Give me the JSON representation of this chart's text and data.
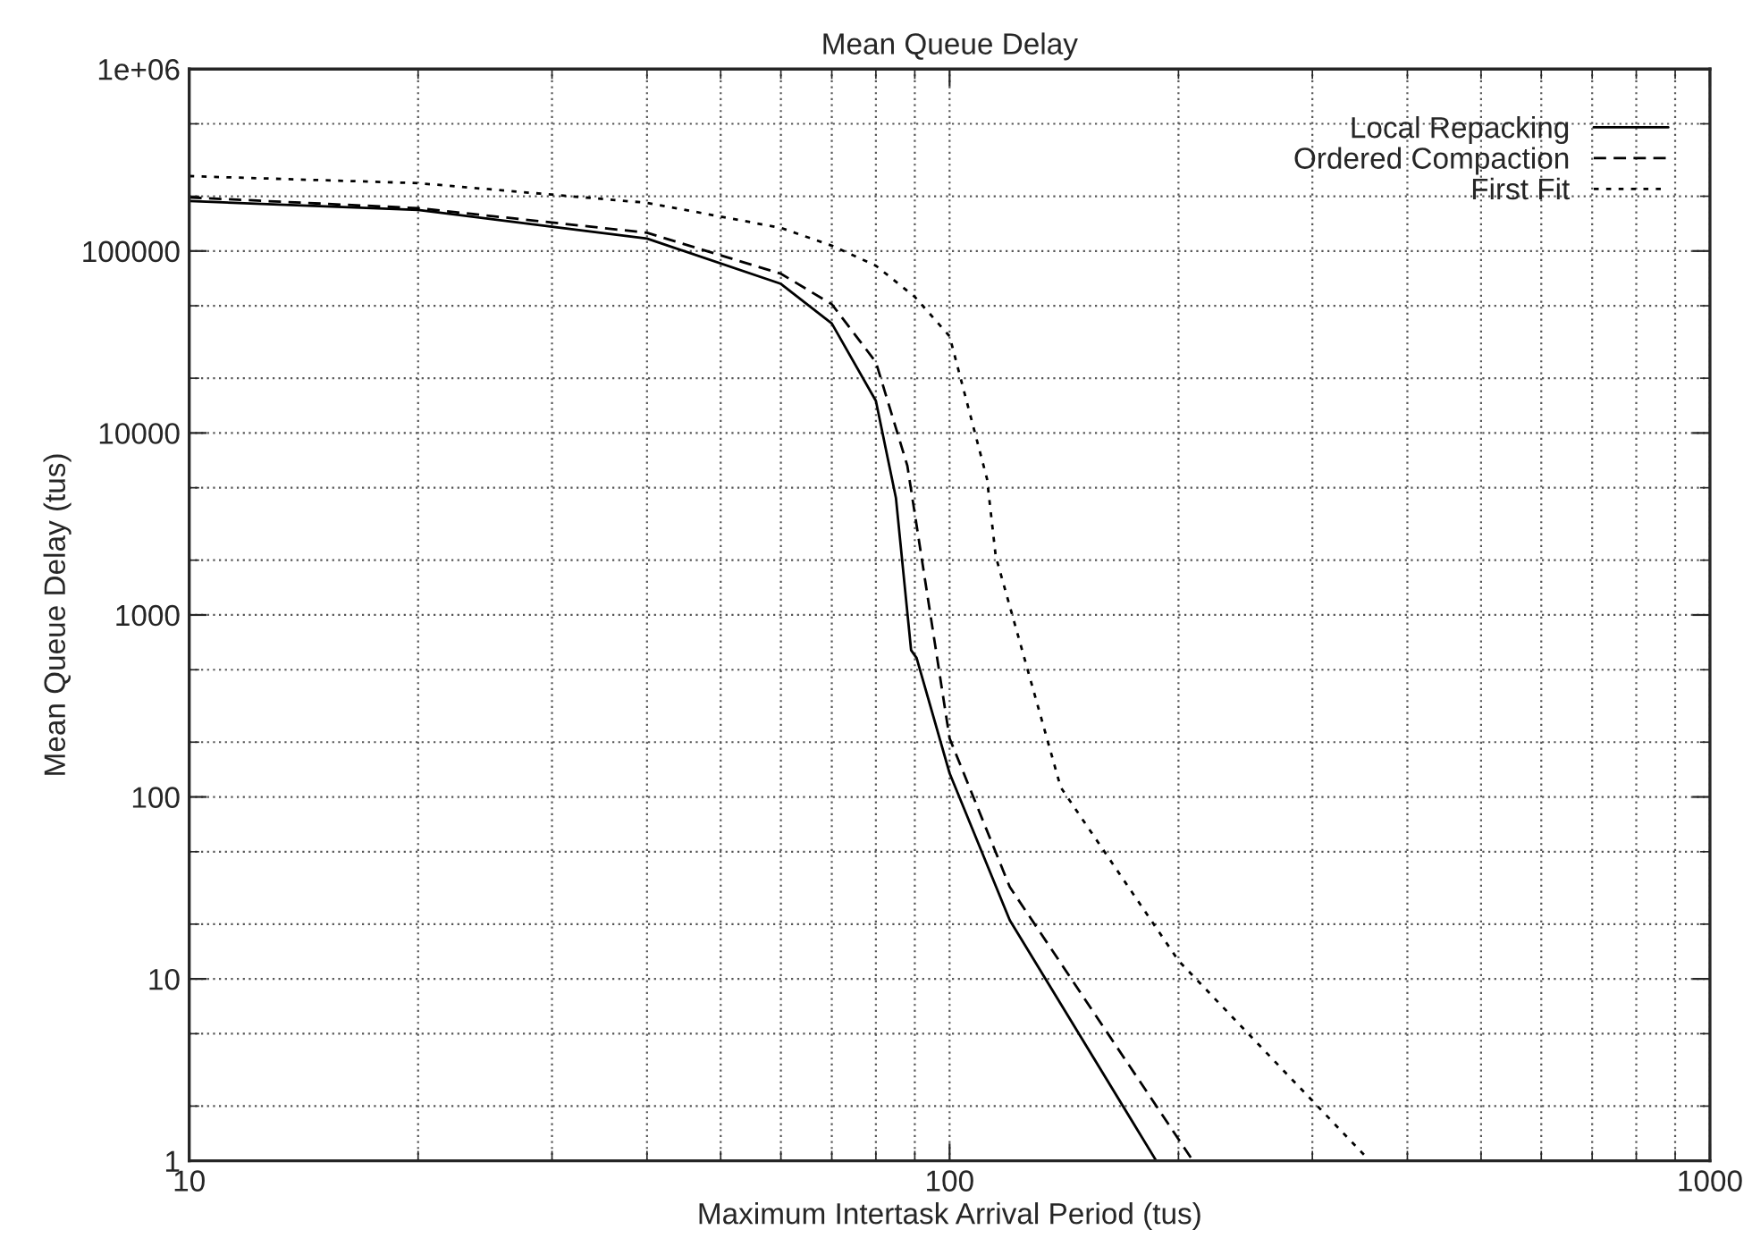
{
  "chart_data": {
    "type": "line",
    "title": "Mean Queue Delay",
    "xlabel": "Maximum Intertask Arrival Period (tus)",
    "ylabel": "Mean Queue Delay (tus)",
    "log": "xy",
    "xlim": [
      10,
      1000
    ],
    "ylim": [
      1,
      1000000
    ],
    "xticks": [
      10,
      100,
      1000
    ],
    "yticks": [
      1,
      10,
      100,
      1000,
      10000,
      100000,
      {
        "value": 1000000,
        "label": "1e+06"
      }
    ],
    "grid": true,
    "legend": "top right",
    "marker": "none",
    "series": [
      {
        "name": "Local Repacking",
        "color": "#000000",
        "line_style": "solid",
        "x": [
          10,
          20,
          40,
          60,
          70,
          80,
          85,
          89,
          90.5,
          100,
          120,
          187
        ],
        "values": [
          188000,
          168000,
          117000,
          66000,
          40000,
          15000,
          4400,
          640,
          580,
          135,
          21,
          1
        ]
      },
      {
        "name": "Ordered Compaction",
        "color": "#000000",
        "line_style": "dashed",
        "x": [
          10,
          20,
          40,
          60,
          70,
          80,
          88,
          100,
          120,
          209
        ],
        "values": [
          197000,
          172000,
          126000,
          75000,
          51000,
          24500,
          6600,
          210,
          32,
          1
        ]
      },
      {
        "name": "First Fit",
        "color": "#000000",
        "line_style": "dotted",
        "x": [
          10,
          20,
          40,
          60,
          70,
          80,
          90,
          100,
          112,
          115,
          140,
          200,
          357
        ],
        "values": [
          258000,
          236000,
          184000,
          134000,
          107000,
          83000,
          56000,
          34000,
          5600,
          2100,
          113,
          12.6,
          1
        ]
      }
    ]
  }
}
